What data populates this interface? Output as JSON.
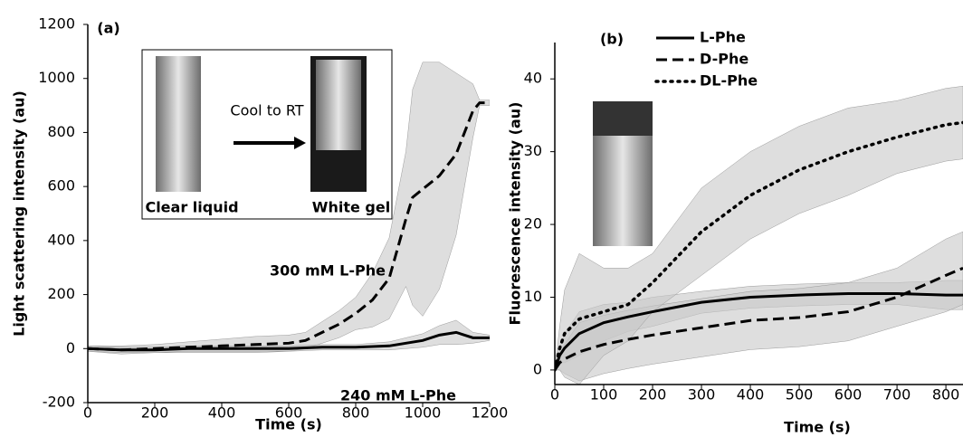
{
  "chart_data": [
    {
      "type": "line",
      "panel_label": "(a)",
      "xlabel": "Time (s)",
      "ylabel": "Light scattering intensity (au)",
      "xlim": [
        0,
        1200
      ],
      "ylim": [
        -200,
        1200
      ],
      "xticks": [
        0,
        200,
        400,
        600,
        800,
        1000,
        1200
      ],
      "yticks": [
        -200,
        0,
        200,
        400,
        600,
        800,
        1000,
        1200
      ],
      "legend": false,
      "band_color": "#c8c8c8",
      "series": [
        {
          "name": "300 mM L-Phe",
          "color": "#000000",
          "dash": "dashed",
          "x": [
            0,
            100,
            200,
            300,
            400,
            500,
            600,
            650,
            700,
            750,
            800,
            850,
            900,
            950,
            970,
            1000,
            1050,
            1100,
            1150,
            1170,
            1200
          ],
          "values": [
            0,
            -5,
            0,
            5,
            10,
            15,
            20,
            30,
            60,
            90,
            130,
            180,
            260,
            480,
            560,
            590,
            640,
            720,
            880,
            910,
            910
          ],
          "error": [
            10,
            15,
            15,
            20,
            25,
            30,
            30,
            30,
            40,
            50,
            60,
            100,
            150,
            250,
            400,
            470,
            420,
            300,
            100,
            10,
            10
          ]
        },
        {
          "name": "240 mM L-Phe",
          "color": "#000000",
          "dash": "solid",
          "x": [
            0,
            100,
            200,
            300,
            400,
            500,
            600,
            700,
            800,
            900,
            950,
            1000,
            1050,
            1100,
            1150,
            1200
          ],
          "values": [
            0,
            -5,
            -5,
            0,
            0,
            0,
            0,
            5,
            5,
            10,
            20,
            30,
            50,
            60,
            40,
            40
          ],
          "error": [
            10,
            10,
            10,
            10,
            10,
            10,
            10,
            10,
            10,
            15,
            20,
            25,
            35,
            45,
            20,
            10
          ]
        }
      ],
      "annotations": [
        "Clear liquid",
        "Cool to RT",
        "White gel"
      ]
    },
    {
      "type": "line",
      "panel_label": "(b)",
      "xlabel": "Time (s)",
      "ylabel": "Fluorescence intensity (au)",
      "xlim": [
        0,
        835
      ],
      "ylim": [
        -2,
        45
      ],
      "xticks": [
        0,
        100,
        200,
        300,
        400,
        500,
        600,
        700,
        800
      ],
      "yticks": [
        0,
        10,
        20,
        30,
        40
      ],
      "legend": true,
      "band_color": "#c8c8c8",
      "series": [
        {
          "name": "L-Phe",
          "color": "#000000",
          "dash": "solid",
          "x": [
            0,
            10,
            20,
            50,
            100,
            150,
            200,
            300,
            400,
            500,
            600,
            700,
            800,
            835
          ],
          "values": [
            0,
            2,
            3,
            5,
            6.5,
            7.3,
            8,
            9.3,
            10,
            10.3,
            10.5,
            10.5,
            10.3,
            10.3
          ],
          "error": [
            0,
            1,
            2,
            3,
            2.5,
            2,
            2,
            1.5,
            1.5,
            1.5,
            1.5,
            1.5,
            2,
            2
          ]
        },
        {
          "name": "D-Phe",
          "color": "#000000",
          "dash": "dashed",
          "x": [
            0,
            10,
            20,
            50,
            100,
            150,
            200,
            300,
            400,
            500,
            600,
            700,
            800,
            835
          ],
          "values": [
            0,
            1,
            1.5,
            2.5,
            3.5,
            4.2,
            4.8,
            5.8,
            6.8,
            7.2,
            8,
            10,
            13,
            14
          ],
          "error": [
            0,
            1,
            2,
            4,
            4,
            4,
            4,
            4,
            4,
            4,
            4,
            4,
            5,
            5
          ]
        },
        {
          "name": "DL-Phe",
          "color": "#000000",
          "dash": "dotted",
          "x": [
            0,
            10,
            20,
            50,
            100,
            150,
            200,
            300,
            400,
            500,
            600,
            700,
            800,
            835
          ],
          "values": [
            0,
            3,
            5,
            7,
            8,
            9,
            12,
            19,
            24,
            27.5,
            30,
            32,
            33.7,
            34
          ],
          "error": [
            0,
            3,
            6,
            9,
            6,
            5,
            4,
            6,
            6,
            6,
            6,
            5,
            5,
            5
          ]
        }
      ]
    }
  ]
}
